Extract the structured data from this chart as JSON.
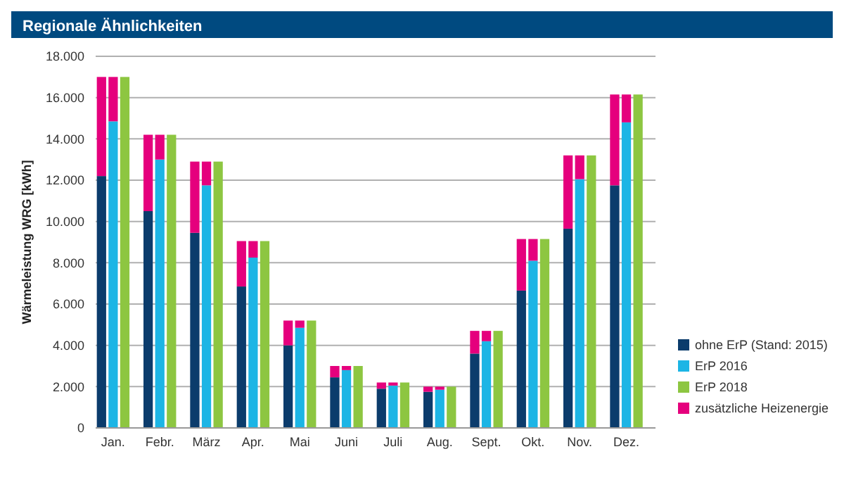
{
  "chart_data": {
    "type": "bar",
    "title": "Regionale Ähnlichkeiten",
    "ylabel": "Wärmeleistung WRG [kWh]",
    "categories": [
      null,
      "Jan.",
      null,
      null,
      null,
      "Febr.",
      null,
      null,
      null,
      "März",
      null,
      null,
      null,
      "Apr.",
      null,
      null,
      null,
      "Mai",
      null,
      null,
      null,
      "Juni",
      null,
      null,
      null,
      "Juli",
      null,
      null,
      null,
      "Aug.",
      null,
      null,
      null,
      "Sept.",
      null,
      null,
      null,
      "Okt.",
      null,
      null,
      null,
      "Nov.",
      null,
      null,
      null,
      "Dez.",
      null,
      null
    ],
    "stacked": true,
    "series": [
      {
        "name": "ohne ErP (Stand: 2015)",
        "color": "#0b3c6c",
        "values": [
          12200,
          null,
          null,
          null,
          10500,
          null,
          null,
          null,
          9450,
          null,
          null,
          null,
          6850,
          null,
          null,
          null,
          4000,
          null,
          null,
          null,
          2450,
          null,
          null,
          null,
          1900,
          null,
          null,
          null,
          1750,
          null,
          null,
          null,
          3600,
          null,
          null,
          null,
          6650,
          null,
          null,
          null,
          9650,
          null,
          null,
          null,
          11750,
          null,
          null,
          null
        ]
      },
      {
        "name": "ErP 2016",
        "color": "#1cb5e5",
        "values": [
          null,
          14850,
          null,
          null,
          null,
          13000,
          null,
          null,
          null,
          11750,
          null,
          null,
          null,
          8250,
          null,
          null,
          null,
          4850,
          null,
          null,
          null,
          2800,
          null,
          null,
          null,
          2050,
          null,
          null,
          null,
          1850,
          null,
          null,
          null,
          4200,
          null,
          null,
          null,
          8100,
          null,
          null,
          null,
          12050,
          null,
          null,
          null,
          14800,
          null,
          null
        ]
      },
      {
        "name": "ErP 2018",
        "color": "#8dc641",
        "values": [
          null,
          null,
          17000,
          null,
          null,
          null,
          14200,
          null,
          null,
          null,
          12900,
          null,
          null,
          null,
          9050,
          null,
          null,
          null,
          5200,
          null,
          null,
          null,
          3000,
          null,
          null,
          null,
          2200,
          null,
          null,
          null,
          2000,
          null,
          null,
          null,
          4700,
          null,
          null,
          null,
          9150,
          null,
          null,
          null,
          13200,
          null,
          null,
          null,
          16150,
          null
        ]
      },
      {
        "name": "zusätzliche Heizenergie",
        "color": "#e5007d",
        "values": [
          4800,
          2150,
          null,
          null,
          3700,
          1200,
          null,
          null,
          3450,
          1150,
          null,
          null,
          2200,
          800,
          null,
          null,
          1200,
          350,
          null,
          null,
          550,
          200,
          null,
          null,
          300,
          150,
          null,
          null,
          250,
          150,
          null,
          null,
          1100,
          500,
          null,
          null,
          2500,
          1050,
          null,
          null,
          3550,
          1150,
          null,
          null,
          4400,
          1350,
          null,
          null
        ]
      }
    ],
    "ylim": [
      0,
      18000
    ],
    "yticks": [
      {
        "value": 0,
        "label": "0"
      },
      {
        "value": 2000,
        "label": "2.000"
      },
      {
        "value": 4000,
        "label": "4.000"
      },
      {
        "value": 6000,
        "label": "6.000"
      },
      {
        "value": 8000,
        "label": "8.000"
      },
      {
        "value": 10000,
        "label": "10.000"
      },
      {
        "value": 12000,
        "label": "12.000"
      },
      {
        "value": 14000,
        "label": "14.000"
      },
      {
        "value": 16000,
        "label": "16.000"
      },
      {
        "value": 18000,
        "label": "18.000"
      }
    ],
    "grid": "y",
    "legend": "bottom right"
  }
}
